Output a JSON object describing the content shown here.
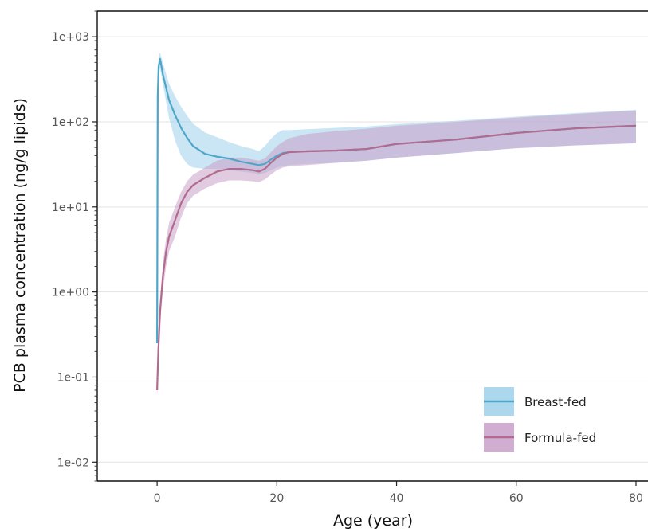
{
  "chart_data": {
    "type": "line",
    "xlabel": "Age (year)",
    "ylabel": "PCB plasma concentration (ng/g lipids)",
    "xlim": [
      -10,
      82
    ],
    "x_ticks": [
      0,
      20,
      40,
      60,
      80
    ],
    "x_tick_labels": [
      "0",
      "20",
      "40",
      "60",
      "80"
    ],
    "y_scale": "log",
    "ylim": [
      0.006,
      2000
    ],
    "y_ticks": [
      0.01,
      0.1,
      1,
      10,
      100,
      1000
    ],
    "y_tick_labels": [
      "1e-02",
      "1e-01",
      "1e+00",
      "1e+01",
      "1e+02",
      "1e+03"
    ],
    "grid": true,
    "legend_position": "bottom-right",
    "series": [
      {
        "name": "Breast-fed",
        "color": "#4fa6c8",
        "band_color": "#9fd0ea",
        "x": [
          0,
          0.1,
          0.25,
          0.5,
          1,
          2,
          3,
          4,
          5,
          6,
          8,
          10,
          12,
          14,
          16,
          17,
          18,
          19,
          20,
          21,
          22,
          25,
          30,
          35,
          40,
          50,
          60,
          70,
          80
        ],
        "y": [
          0.25,
          200,
          450,
          550,
          350,
          180,
          120,
          85,
          65,
          52,
          42,
          39,
          37,
          34,
          32,
          31,
          32,
          36,
          40,
          43,
          44,
          45,
          46,
          48,
          55,
          62,
          74,
          84,
          90
        ],
        "lower": [
          0.15,
          150,
          350,
          420,
          270,
          110,
          60,
          40,
          32,
          29,
          28,
          28,
          27,
          26,
          25,
          24,
          25,
          27,
          29,
          30,
          31,
          32,
          33,
          35,
          38,
          43,
          49,
          53,
          56
        ],
        "upper": [
          0.4,
          300,
          600,
          650,
          480,
          280,
          200,
          150,
          118,
          95,
          75,
          66,
          58,
          52,
          48,
          45,
          52,
          63,
          74,
          80,
          80,
          82,
          85,
          88,
          94,
          103,
          115,
          127,
          138
        ]
      },
      {
        "name": "Formula-fed",
        "color": "#b26a8e",
        "band_color": "#c9a0c9",
        "x": [
          0,
          0.1,
          0.2,
          0.35,
          0.5,
          0.75,
          1,
          1.5,
          2,
          3,
          4,
          5,
          6,
          8,
          10,
          12,
          14,
          16,
          17,
          18,
          19,
          20,
          21,
          22,
          25,
          30,
          35,
          40,
          50,
          60,
          70,
          80
        ],
        "y": [
          0.07,
          0.12,
          0.2,
          0.35,
          0.6,
          1.0,
          1.6,
          3.0,
          4.5,
          7,
          11,
          15,
          18,
          22,
          26,
          28,
          28,
          27,
          26,
          28,
          33,
          38,
          42,
          44,
          45,
          46,
          48,
          55,
          62,
          74,
          84,
          90
        ],
        "lower": [
          0.06,
          0.09,
          0.14,
          0.25,
          0.4,
          0.7,
          1.1,
          2.0,
          3.0,
          4.5,
          7.5,
          11,
          13.5,
          16.5,
          19,
          20.5,
          20.5,
          20,
          19.5,
          21,
          24,
          27,
          29,
          30,
          31,
          33,
          35,
          38,
          43,
          49,
          53,
          56
        ],
        "upper": [
          0.09,
          0.17,
          0.3,
          0.5,
          0.85,
          1.4,
          2.3,
          4.3,
          6.5,
          10,
          15,
          20,
          24,
          29,
          35,
          38,
          38,
          36,
          35,
          37,
          44,
          52,
          58,
          64,
          72,
          78,
          83,
          90,
          100,
          112,
          124,
          136
        ]
      }
    ]
  }
}
